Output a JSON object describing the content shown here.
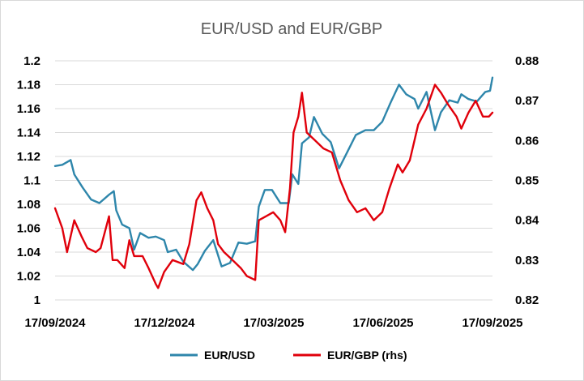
{
  "chart_data": {
    "type": "line",
    "title": "EUR/USD and EUR/GBP",
    "x_ticks": [
      "17/09/2024",
      "17/12/2024",
      "17/03/2025",
      "17/06/2025",
      "17/09/2025"
    ],
    "x_range": [
      "2024-09-17",
      "2025-09-17"
    ],
    "y_left": {
      "ylim": [
        1.0,
        1.2
      ],
      "ticks": [
        "1",
        "1.02",
        "1.04",
        "1.06",
        "1.08",
        "1.1",
        "1.12",
        "1.14",
        "1.16",
        "1.18",
        "1.2"
      ]
    },
    "y_right": {
      "ylim": [
        0.82,
        0.88
      ],
      "ticks": [
        "0.82",
        "0.83",
        "0.84",
        "0.85",
        "0.86",
        "0.87",
        "0.88"
      ]
    },
    "grid": "horizontal",
    "legend": "bottom",
    "series": [
      {
        "name": "EUR/USD",
        "axis": "left",
        "color": "#2e86ab",
        "points": [
          [
            "2024-09-17",
            1.112
          ],
          [
            "2024-09-23",
            1.113
          ],
          [
            "2024-09-30",
            1.117
          ],
          [
            "2024-10-03",
            1.105
          ],
          [
            "2024-10-10",
            1.094
          ],
          [
            "2024-10-17",
            1.084
          ],
          [
            "2024-10-24",
            1.081
          ],
          [
            "2024-11-01",
            1.088
          ],
          [
            "2024-11-05",
            1.091
          ],
          [
            "2024-11-07",
            1.075
          ],
          [
            "2024-11-12",
            1.063
          ],
          [
            "2024-11-18",
            1.06
          ],
          [
            "2024-11-22",
            1.042
          ],
          [
            "2024-11-27",
            1.056
          ],
          [
            "2024-12-04",
            1.052
          ],
          [
            "2024-12-10",
            1.053
          ],
          [
            "2024-12-17",
            1.05
          ],
          [
            "2024-12-20",
            1.04
          ],
          [
            "2024-12-27",
            1.042
          ],
          [
            "2025-01-02",
            1.032
          ],
          [
            "2025-01-10",
            1.025
          ],
          [
            "2025-01-14",
            1.03
          ],
          [
            "2025-01-20",
            1.041
          ],
          [
            "2025-01-27",
            1.05
          ],
          [
            "2025-02-03",
            1.028
          ],
          [
            "2025-02-10",
            1.031
          ],
          [
            "2025-02-17",
            1.048
          ],
          [
            "2025-02-24",
            1.047
          ],
          [
            "2025-03-03",
            1.049
          ],
          [
            "2025-03-06",
            1.078
          ],
          [
            "2025-03-11",
            1.092
          ],
          [
            "2025-03-17",
            1.092
          ],
          [
            "2025-03-24",
            1.081
          ],
          [
            "2025-03-31",
            1.081
          ],
          [
            "2025-04-03",
            1.105
          ],
          [
            "2025-04-08",
            1.097
          ],
          [
            "2025-04-11",
            1.131
          ],
          [
            "2025-04-17",
            1.136
          ],
          [
            "2025-04-21",
            1.153
          ],
          [
            "2025-04-28",
            1.139
          ],
          [
            "2025-05-05",
            1.132
          ],
          [
            "2025-05-12",
            1.11
          ],
          [
            "2025-05-19",
            1.124
          ],
          [
            "2025-05-26",
            1.138
          ],
          [
            "2025-06-03",
            1.142
          ],
          [
            "2025-06-10",
            1.142
          ],
          [
            "2025-06-17",
            1.149
          ],
          [
            "2025-06-24",
            1.165
          ],
          [
            "2025-07-01",
            1.18
          ],
          [
            "2025-07-07",
            1.172
          ],
          [
            "2025-07-14",
            1.168
          ],
          [
            "2025-07-17",
            1.16
          ],
          [
            "2025-07-24",
            1.174
          ],
          [
            "2025-07-31",
            1.142
          ],
          [
            "2025-08-05",
            1.157
          ],
          [
            "2025-08-12",
            1.167
          ],
          [
            "2025-08-19",
            1.165
          ],
          [
            "2025-08-22",
            1.172
          ],
          [
            "2025-08-28",
            1.168
          ],
          [
            "2025-09-04",
            1.166
          ],
          [
            "2025-09-11",
            1.174
          ],
          [
            "2025-09-15",
            1.175
          ],
          [
            "2025-09-17",
            1.186
          ]
        ]
      },
      {
        "name": "EUR/GBP (rhs)",
        "axis": "right",
        "color": "#e0000b",
        "points": [
          [
            "2024-09-17",
            0.843
          ],
          [
            "2024-09-23",
            0.838
          ],
          [
            "2024-09-27",
            0.832
          ],
          [
            "2024-10-03",
            0.84
          ],
          [
            "2024-10-09",
            0.836
          ],
          [
            "2024-10-14",
            0.833
          ],
          [
            "2024-10-21",
            0.832
          ],
          [
            "2024-10-25",
            0.833
          ],
          [
            "2024-11-01",
            0.841
          ],
          [
            "2024-11-04",
            0.83
          ],
          [
            "2024-11-08",
            0.83
          ],
          [
            "2024-11-14",
            0.828
          ],
          [
            "2024-11-18",
            0.835
          ],
          [
            "2024-11-22",
            0.831
          ],
          [
            "2024-11-29",
            0.831
          ],
          [
            "2024-12-04",
            0.828
          ],
          [
            "2024-12-10",
            0.824
          ],
          [
            "2024-12-12",
            0.823
          ],
          [
            "2024-12-17",
            0.827
          ],
          [
            "2024-12-24",
            0.83
          ],
          [
            "2025-01-02",
            0.829
          ],
          [
            "2025-01-07",
            0.834
          ],
          [
            "2025-01-13",
            0.845
          ],
          [
            "2025-01-17",
            0.847
          ],
          [
            "2025-01-22",
            0.843
          ],
          [
            "2025-01-27",
            0.84
          ],
          [
            "2025-01-31",
            0.834
          ],
          [
            "2025-02-05",
            0.832
          ],
          [
            "2025-02-12",
            0.83
          ],
          [
            "2025-02-19",
            0.828
          ],
          [
            "2025-02-24",
            0.826
          ],
          [
            "2025-03-03",
            0.825
          ],
          [
            "2025-03-06",
            0.84
          ],
          [
            "2025-03-12",
            0.841
          ],
          [
            "2025-03-18",
            0.842
          ],
          [
            "2025-03-24",
            0.84
          ],
          [
            "2025-03-28",
            0.837
          ],
          [
            "2025-04-01",
            0.848
          ],
          [
            "2025-04-04",
            0.862
          ],
          [
            "2025-04-08",
            0.866
          ],
          [
            "2025-04-11",
            0.872
          ],
          [
            "2025-04-15",
            0.862
          ],
          [
            "2025-04-22",
            0.86
          ],
          [
            "2025-04-29",
            0.858
          ],
          [
            "2025-05-06",
            0.857
          ],
          [
            "2025-05-13",
            0.85
          ],
          [
            "2025-05-20",
            0.845
          ],
          [
            "2025-05-27",
            0.842
          ],
          [
            "2025-06-03",
            0.843
          ],
          [
            "2025-06-10",
            0.84
          ],
          [
            "2025-06-17",
            0.842
          ],
          [
            "2025-06-23",
            0.848
          ],
          [
            "2025-06-30",
            0.854
          ],
          [
            "2025-07-04",
            0.852
          ],
          [
            "2025-07-10",
            0.855
          ],
          [
            "2025-07-17",
            0.864
          ],
          [
            "2025-07-24",
            0.868
          ],
          [
            "2025-07-31",
            0.874
          ],
          [
            "2025-08-05",
            0.872
          ],
          [
            "2025-08-11",
            0.869
          ],
          [
            "2025-08-18",
            0.866
          ],
          [
            "2025-08-22",
            0.863
          ],
          [
            "2025-08-28",
            0.867
          ],
          [
            "2025-09-03",
            0.87
          ],
          [
            "2025-09-09",
            0.866
          ],
          [
            "2025-09-14",
            0.866
          ],
          [
            "2025-09-17",
            0.867
          ]
        ]
      }
    ]
  }
}
